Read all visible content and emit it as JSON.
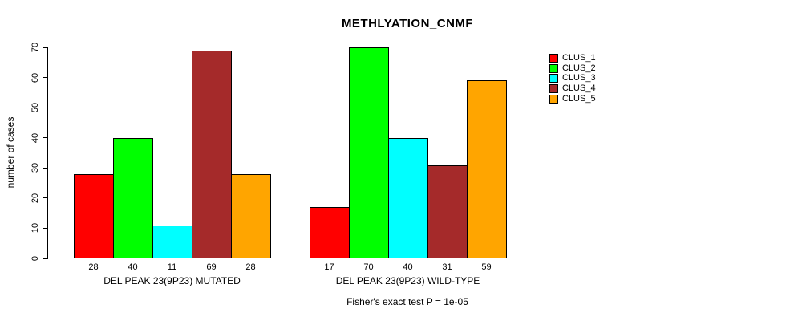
{
  "chart_data": {
    "type": "bar",
    "title": "METHLYATION_CNMF",
    "ylabel": "number of cases",
    "xlabel": "",
    "ylim": [
      0,
      70
    ],
    "yticks": [
      0,
      10,
      20,
      30,
      40,
      50,
      60,
      70
    ],
    "grid": false,
    "legend_position": "right-outside",
    "bar_value_labels": true,
    "annotation": "Fisher's exact test P = 1e-05",
    "categories": [
      "DEL PEAK 23(9P23) MUTATED",
      "DEL PEAK 23(9P23) WILD-TYPE"
    ],
    "series": [
      {
        "name": "CLUS_1",
        "color": "#FF0000",
        "values": [
          28,
          17
        ]
      },
      {
        "name": "CLUS_2",
        "color": "#00FF00",
        "values": [
          40,
          70
        ]
      },
      {
        "name": "CLUS_3",
        "color": "#00FFFF",
        "values": [
          11,
          40
        ]
      },
      {
        "name": "CLUS_4",
        "color": "#A52A2A",
        "values": [
          69,
          31
        ]
      },
      {
        "name": "CLUS_5",
        "color": "#FFA500",
        "values": [
          28,
          59
        ]
      }
    ]
  }
}
